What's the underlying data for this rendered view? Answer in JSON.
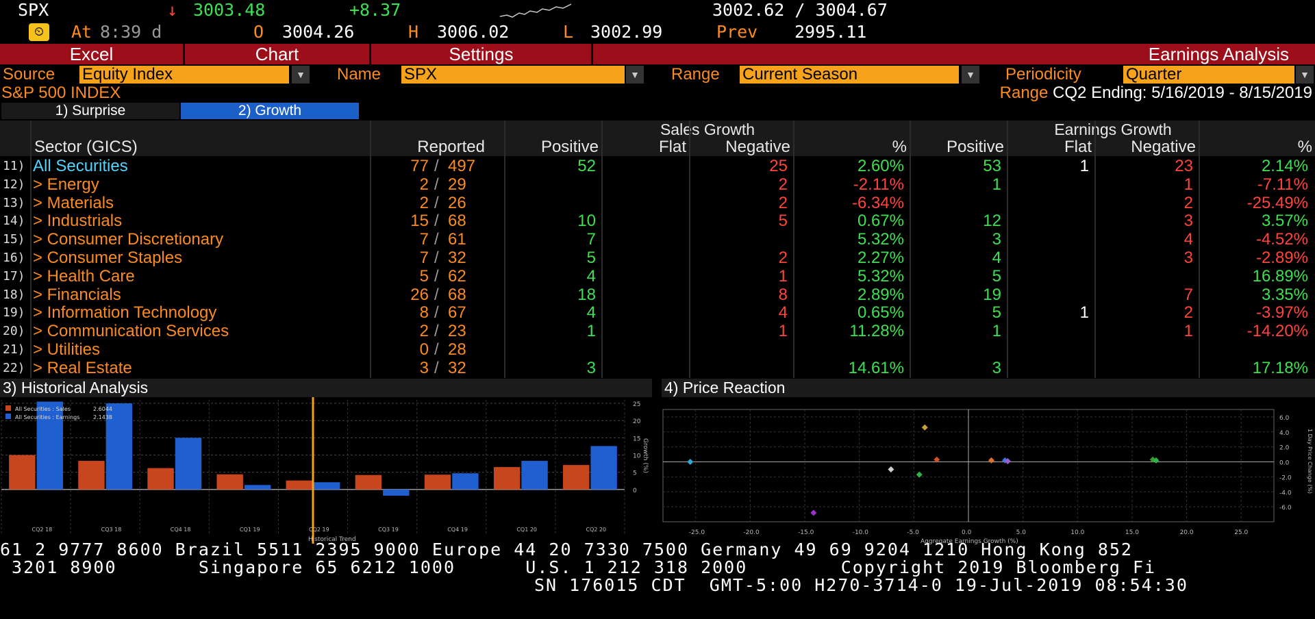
{
  "quote": {
    "ticker": "SPX",
    "arrow": "↓",
    "last": "3003.48",
    "change": "+8.37",
    "bidask": "3002.62 / 3004.67",
    "at_label": "At",
    "at_time": "8:39 d",
    "open_label": "O",
    "open": "3004.26",
    "high_label": "H",
    "high": "3006.02",
    "low_label": "L",
    "low": "3002.99",
    "prev_label": "Prev",
    "prev": "2995.11"
  },
  "tabs": {
    "excel": "Excel",
    "chart": "Chart",
    "settings": "Settings",
    "title": "Earnings Analysis"
  },
  "filters": {
    "source_label": "Source",
    "source_value": "Equity Index",
    "name_label": "Name",
    "name_value": "SPX",
    "range_label": "Range",
    "range_value": "Current Season",
    "periodicity_label": "Periodicity",
    "periodicity_value": "Quarter"
  },
  "index_name": "S&P 500 INDEX",
  "range_info_label": "Range",
  "range_info": "CQ2 Ending: 5/16/2019 - 8/15/2019",
  "subtabs": {
    "surprise": "1) Surprise",
    "growth": "2) Growth"
  },
  "table": {
    "group_sales": "Sales Growth",
    "group_earnings": "Earnings Growth",
    "headers": {
      "sector": "Sector (GICS)",
      "reported": "Reported",
      "positive": "Positive",
      "flat": "Flat",
      "negative": "Negative",
      "pct": "%"
    },
    "rows": [
      {
        "num": "11)",
        "name": "All Securities",
        "rep": "77",
        "tot": "497",
        "sp": "52",
        "sf": "",
        "sn": "25",
        "spct": "2.60%",
        "ep": "53",
        "ef": "1",
        "en": "23",
        "epct": "2.14%"
      },
      {
        "num": "12)",
        "name": "> Energy",
        "rep": "2",
        "tot": "29",
        "sp": "",
        "sf": "",
        "sn": "2",
        "spct": "-2.11%",
        "ep": "1",
        "ef": "",
        "en": "1",
        "epct": "-7.11%"
      },
      {
        "num": "13)",
        "name": "> Materials",
        "rep": "2",
        "tot": "26",
        "sp": "",
        "sf": "",
        "sn": "2",
        "spct": "-6.34%",
        "ep": "",
        "ef": "",
        "en": "2",
        "epct": "-25.49%"
      },
      {
        "num": "14)",
        "name": "> Industrials",
        "rep": "15",
        "tot": "68",
        "sp": "10",
        "sf": "",
        "sn": "5",
        "spct": "0.67%",
        "ep": "12",
        "ef": "",
        "en": "3",
        "epct": "3.57%"
      },
      {
        "num": "15)",
        "name": "> Consumer Discretionary",
        "rep": "7",
        "tot": "61",
        "sp": "7",
        "sf": "",
        "sn": "",
        "spct": "5.32%",
        "ep": "3",
        "ef": "",
        "en": "4",
        "epct": "-4.52%"
      },
      {
        "num": "16)",
        "name": "> Consumer Staples",
        "rep": "7",
        "tot": "32",
        "sp": "5",
        "sf": "",
        "sn": "2",
        "spct": "2.27%",
        "ep": "4",
        "ef": "",
        "en": "3",
        "epct": "-2.89%"
      },
      {
        "num": "17)",
        "name": "> Health Care",
        "rep": "5",
        "tot": "62",
        "sp": "4",
        "sf": "",
        "sn": "1",
        "spct": "5.32%",
        "ep": "5",
        "ef": "",
        "en": "",
        "epct": "16.89%"
      },
      {
        "num": "18)",
        "name": "> Financials",
        "rep": "26",
        "tot": "68",
        "sp": "18",
        "sf": "",
        "sn": "8",
        "spct": "2.89%",
        "ep": "19",
        "ef": "",
        "en": "7",
        "epct": "3.35%"
      },
      {
        "num": "19)",
        "name": "> Information Technology",
        "rep": "8",
        "tot": "67",
        "sp": "4",
        "sf": "",
        "sn": "4",
        "spct": "0.65%",
        "ep": "5",
        "ef": "1",
        "en": "2",
        "epct": "-3.97%"
      },
      {
        "num": "20)",
        "name": "> Communication Services",
        "rep": "2",
        "tot": "23",
        "sp": "1",
        "sf": "",
        "sn": "1",
        "spct": "11.28%",
        "ep": "1",
        "ef": "",
        "en": "1",
        "epct": "-14.20%"
      },
      {
        "num": "21)",
        "name": "> Utilities",
        "rep": "0",
        "tot": "28",
        "sp": "",
        "sf": "",
        "sn": "",
        "spct": "",
        "ep": "",
        "ef": "",
        "en": "",
        "epct": ""
      },
      {
        "num": "22)",
        "name": "> Real Estate",
        "rep": "3",
        "tot": "32",
        "sp": "3",
        "sf": "",
        "sn": "",
        "spct": "14.61%",
        "ep": "3",
        "ef": "",
        "en": "",
        "epct": "17.18%"
      }
    ]
  },
  "panels": {
    "historical": "3) Historical Analysis",
    "price": "4) Price Reaction"
  },
  "chart_data": [
    {
      "type": "bar",
      "categories": [
        "CQ2 18",
        "CQ3 18",
        "CQ4 18",
        "CQ1 19",
        "CQ2 19",
        "CQ3 19",
        "CQ4 19",
        "CQ1 20",
        "CQ2 20"
      ],
      "series": [
        {
          "name": "All Securities : Sales",
          "color": "#c8461e",
          "values": [
            10.0,
            8.3,
            6.2,
            4.4,
            2.6,
            4.2,
            4.3,
            6.5,
            7.1
          ]
        },
        {
          "name": "All Securities : Earnings",
          "color": "#1f5fd0",
          "values": [
            25.5,
            25.0,
            15.0,
            1.3,
            2.1,
            -1.8,
            4.7,
            8.3,
            12.6
          ]
        }
      ],
      "legend_values": [
        "2.6044",
        "2.1438"
      ],
      "xlabel": "Historical Trend",
      "ylabel": "Growth (%)",
      "ylim": [
        -5,
        26
      ],
      "yticks": [
        0,
        5,
        10,
        15,
        20,
        25
      ],
      "marker_category": "CQ2 19"
    },
    {
      "type": "scatter",
      "xlabel": "Aggregate Earnings Growth (%)",
      "ylabel": "1 Day Price Change (%)",
      "xlim": [
        -28,
        28
      ],
      "ylim": [
        -8,
        7
      ],
      "xticks": [
        -25,
        -20,
        -15,
        -10,
        -5,
        0,
        5,
        10,
        15,
        20,
        25
      ],
      "xtick_labels": [
        "-25.0",
        "-20.0",
        "-15.0",
        "-10.0",
        "-5.0",
        "0.0",
        "5.0",
        "10.0",
        "15.0",
        "20.0",
        "25.0"
      ],
      "yticks": [
        -6,
        -4,
        -2,
        0,
        2,
        4,
        6
      ],
      "ytick_labels": [
        "-6.0",
        "-4.0",
        "-2.0",
        "0.0",
        "2.0",
        "4.0",
        "6.0"
      ],
      "points": [
        {
          "x": -25.5,
          "y": 0.0,
          "color": "#2aa8d8"
        },
        {
          "x": -14.2,
          "y": -6.8,
          "color": "#9b2fd0"
        },
        {
          "x": -7.1,
          "y": -1.0,
          "color": "#d0d0d0"
        },
        {
          "x": -4.5,
          "y": -1.7,
          "color": "#2db24a"
        },
        {
          "x": -4.0,
          "y": 4.6,
          "color": "#c8a040"
        },
        {
          "x": -2.9,
          "y": 0.3,
          "color": "#d0502a"
        },
        {
          "x": 2.1,
          "y": 0.2,
          "color": "#e0702a"
        },
        {
          "x": 3.35,
          "y": 0.2,
          "color": "#3f6fe0"
        },
        {
          "x": 3.6,
          "y": 0.1,
          "color": "#9b5fd0"
        },
        {
          "x": 16.9,
          "y": 0.3,
          "color": "#3a9b2a"
        },
        {
          "x": 17.2,
          "y": 0.2,
          "color": "#2db24a"
        }
      ]
    }
  ],
  "footer": {
    "line1": "61 2 9777 8600 Brazil 5511 2395 9000 Europe 44 20 7330 7500 Germany 49 69 9204 1210 Hong Kong 852",
    "line2": " 3201 8900       Singapore 65 6212 1000      U.S. 1 212 318 2000        Copyright 2019 Bloomberg Fi",
    "line3": "SN 176015 CDT  GMT-5:00 H270-3714-0 19-Jul-2019 08:54:30"
  }
}
